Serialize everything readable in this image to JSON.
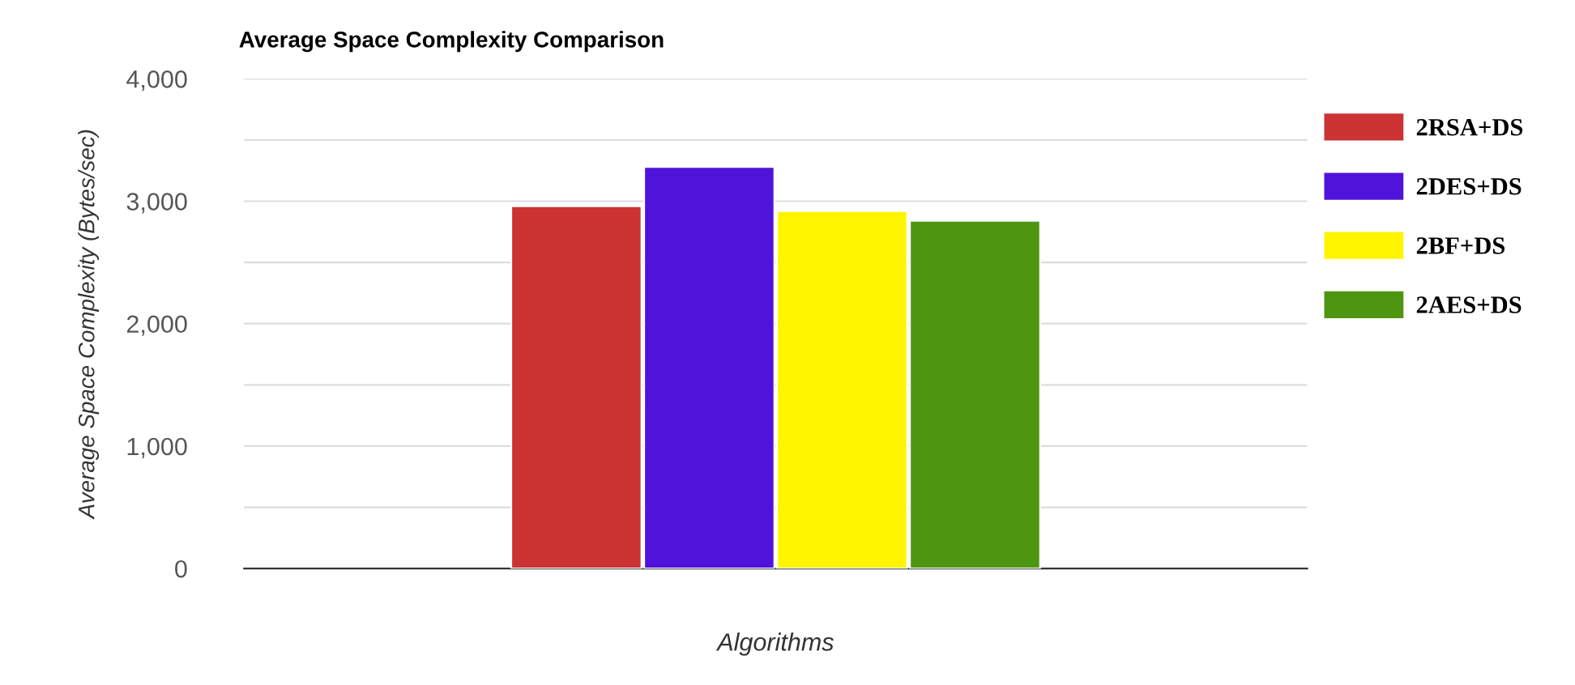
{
  "chart_data": {
    "type": "bar",
    "title": "Average Space Complexity Comparison",
    "xlabel": "Algorithms",
    "ylabel": "Average Space Complexity (Bytes/sec)",
    "categories": [
      null
    ],
    "series": [
      {
        "name": "2RSA+DS",
        "color": "#cc3333",
        "values": [
          2960
        ]
      },
      {
        "name": "2DES+DS",
        "color": "#5013db",
        "values": [
          3280
        ]
      },
      {
        "name": "2BF+DS",
        "color": "#fff500",
        "values": [
          2920
        ]
      },
      {
        "name": "2AES+DS",
        "color": "#4e9612",
        "values": [
          2840
        ]
      }
    ],
    "ylim": [
      0,
      4000
    ],
    "yticks": [
      0,
      {
        "value": 500,
        "label": null
      },
      {
        "value": 1000,
        "label": "1,000"
      },
      {
        "value": 1500,
        "label": null
      },
      {
        "value": 2000,
        "label": "2,000"
      },
      {
        "value": 2500,
        "label": null
      },
      {
        "value": 3000,
        "label": "3,000"
      },
      {
        "value": 3500,
        "label": null
      },
      {
        "value": 4000,
        "label": "4,000"
      }
    ],
    "grid": "y",
    "legend": "right"
  }
}
